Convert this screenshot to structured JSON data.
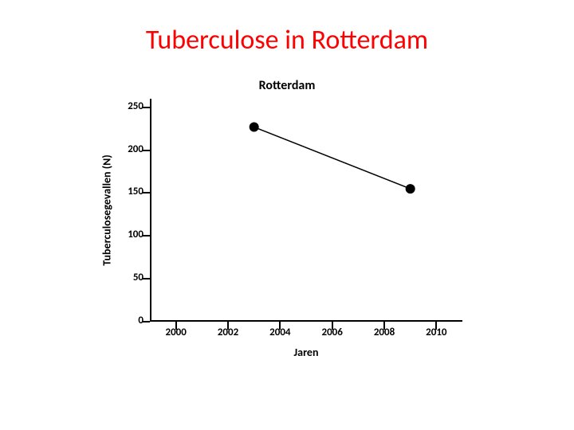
{
  "slide": {
    "title": "Tuberculose in Rotterdam",
    "title_color": "#ff0000",
    "title_fontsize": 34,
    "title_fontweight": "400"
  },
  "chart": {
    "type": "line",
    "title": "Rotterdam",
    "title_fontsize": 16,
    "xlabel": "Jaren",
    "ylabel": "Tuberculosegevallen (N)",
    "label_fontsize": 14,
    "tick_fontsize": 13,
    "xlim": [
      1999,
      2011
    ],
    "ylim": [
      0,
      260
    ],
    "xticks": [
      2000,
      2002,
      2004,
      2006,
      2008,
      2010
    ],
    "yticks": [
      0,
      50,
      100,
      150,
      200,
      250
    ],
    "series": {
      "x": [
        2003,
        2009
      ],
      "y": [
        227,
        155
      ],
      "line_color": "#000000",
      "line_width": 1.5,
      "marker_color": "#000000",
      "marker_radius": 6,
      "marker_style": "circle"
    },
    "axis_color": "#000000",
    "background_color": "#ffffff",
    "grid": false
  }
}
